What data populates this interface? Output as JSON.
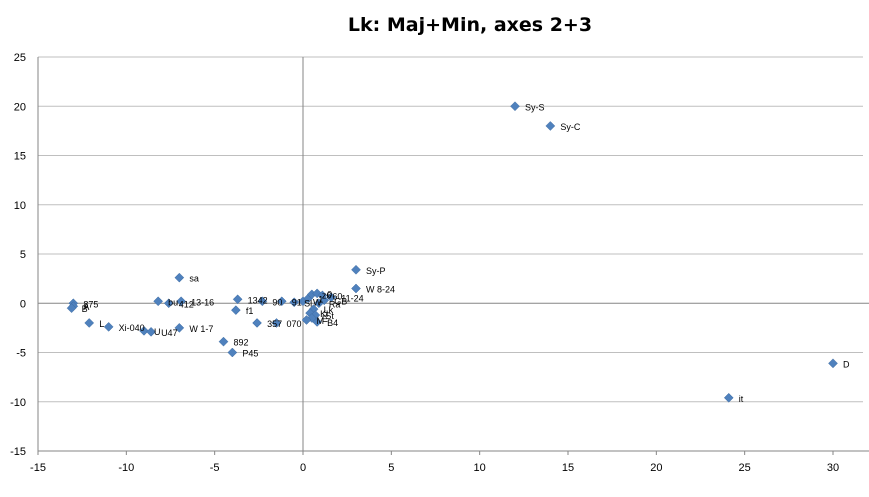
{
  "chart_data": {
    "type": "scatter",
    "title": "Lk: Maj+Min, axes 2+3",
    "xlabel": "",
    "ylabel": "",
    "xlim": [
      -15,
      30
    ],
    "ylim": [
      -15,
      25
    ],
    "xticks": [
      -15,
      -10,
      -5,
      0,
      5,
      10,
      15,
      20,
      25,
      30
    ],
    "yticks": [
      -15,
      -10,
      -5,
      0,
      5,
      10,
      15,
      20,
      25
    ],
    "grid": "horizontal",
    "legend": "none",
    "marker_color": "#4F81BD",
    "points": [
      {
        "x": 12.0,
        "y": 20.0,
        "label": "Sy-S"
      },
      {
        "x": 14.0,
        "y": 18.0,
        "label": "Sy-C"
      },
      {
        "x": 3.0,
        "y": 3.4,
        "label": "Sy-P"
      },
      {
        "x": 3.0,
        "y": 1.5,
        "label": "W 8-24"
      },
      {
        "x": 30.0,
        "y": -6.1,
        "label": "D"
      },
      {
        "x": 24.1,
        "y": -9.6,
        "label": "it"
      },
      {
        "x": -7.0,
        "y": 2.6,
        "label": "sa"
      },
      {
        "x": -13.0,
        "y": 0.0,
        "label": "875"
      },
      {
        "x": -13.0,
        "y": -0.3,
        "label": "A"
      },
      {
        "x": -13.1,
        "y": -0.5,
        "label": "B"
      },
      {
        "x": -12.1,
        "y": -2.0,
        "label": "L"
      },
      {
        "x": -11.0,
        "y": -2.4,
        "label": "Xi-040"
      },
      {
        "x": -9.0,
        "y": -2.8,
        "label": "U"
      },
      {
        "x": -8.6,
        "y": -2.9,
        "label": "U47"
      },
      {
        "x": -7.0,
        "y": -2.5,
        "label": "W 1-7"
      },
      {
        "x": -8.2,
        "y": 0.2,
        "label": "bu"
      },
      {
        "x": -7.6,
        "y": 0.0,
        "label": "412"
      },
      {
        "x": -6.9,
        "y": 0.2,
        "label": "13-16"
      },
      {
        "x": -3.7,
        "y": 0.4,
        "label": "1342"
      },
      {
        "x": -3.8,
        "y": -0.7,
        "label": "f1"
      },
      {
        "x": -2.3,
        "y": 0.2,
        "label": "90"
      },
      {
        "x": -4.5,
        "y": -3.9,
        "label": "892"
      },
      {
        "x": -4.0,
        "y": -5.0,
        "label": "P45"
      },
      {
        "x": -2.6,
        "y": -2.0,
        "label": "357"
      },
      {
        "x": -1.5,
        "y": -2.0,
        "label": "070"
      },
      {
        "x": -1.2,
        "y": 0.2,
        "label": "91"
      },
      {
        "x": -0.5,
        "y": 0.1,
        "label": "Sl"
      },
      {
        "x": 0.0,
        "y": 0.2,
        "label": "W"
      },
      {
        "x": 0.3,
        "y": 0.5,
        "label": "1"
      },
      {
        "x": 0.5,
        "y": 0.9,
        "label": "z6"
      },
      {
        "x": 0.8,
        "y": 1.0,
        "label": "0"
      },
      {
        "x": 1.1,
        "y": 0.8,
        "label": "60"
      },
      {
        "x": 1.6,
        "y": 0.6,
        "label": "11-24"
      },
      {
        "x": 1.2,
        "y": 0.3,
        "label": "GB"
      },
      {
        "x": 0.9,
        "y": 0.0,
        "label": "Ra"
      },
      {
        "x": 0.6,
        "y": -0.6,
        "label": "Lk"
      },
      {
        "x": 0.4,
        "y": -1.0,
        "label": "Kl"
      },
      {
        "x": 0.7,
        "y": -1.2,
        "label": "St"
      },
      {
        "x": 0.5,
        "y": -1.5,
        "label": "E"
      },
      {
        "x": 0.2,
        "y": -1.7,
        "label": "M"
      },
      {
        "x": 0.8,
        "y": -1.9,
        "label": "B4"
      }
    ]
  }
}
